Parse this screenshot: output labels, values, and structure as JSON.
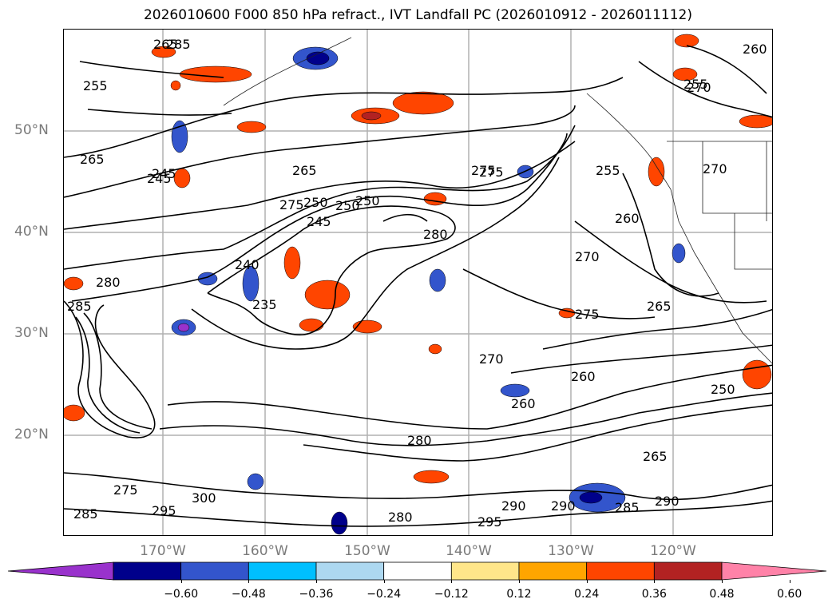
{
  "title": "2026010600 F000 850 hPa refract., IVT Landfall PC (2026010912 - 2026011112)",
  "lat_labels": [
    "50°N",
    "40°N",
    "30°N",
    "20°N"
  ],
  "lon_labels": [
    "170°W",
    "160°W",
    "150°W",
    "140°W",
    "130°W",
    "120°W"
  ],
  "colorbar": {
    "ticks": [
      "−0.60",
      "−0.48",
      "−0.36",
      "−0.24",
      "−0.12",
      "0.12",
      "0.24",
      "0.36",
      "0.48",
      "0.60"
    ],
    "colors": [
      "#9932cc",
      "#00008b",
      "#3355cc",
      "#00bfff",
      "#add8f0",
      "#ffffff",
      "#ffe68a",
      "#ffa500",
      "#ff4500",
      "#b22222",
      "#ff82a8"
    ]
  },
  "contour_labels": [
    "265",
    "285",
    "255",
    "260",
    "265",
    "270",
    "275",
    "245",
    "250",
    "245",
    "240",
    "235",
    "285",
    "280",
    "275",
    "250",
    "265",
    "275",
    "255",
    "270",
    "260",
    "270",
    "265",
    "280",
    "275",
    "285",
    "290",
    "295",
    "300",
    "290",
    "295",
    "285",
    "290",
    "280",
    "265",
    "250",
    "260",
    "255",
    "245",
    "250",
    "270",
    "260",
    "280",
    "275"
  ]
}
